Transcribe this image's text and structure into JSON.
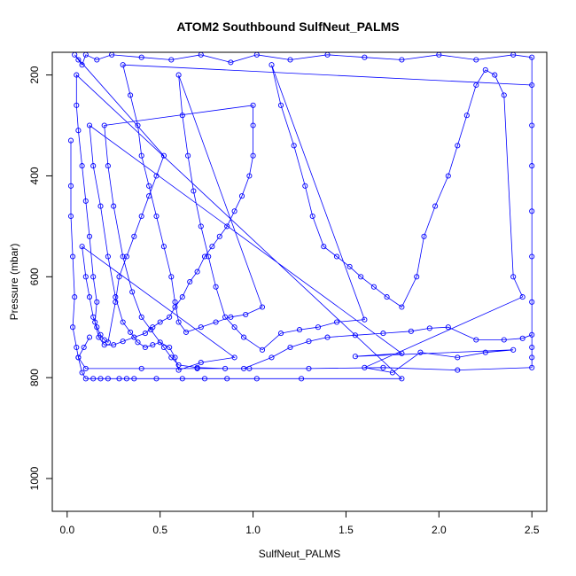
{
  "chart_data": {
    "type": "scatter",
    "title": "ATOM2 Southbound SulfNeut_PALMS",
    "xlabel": "SulfNeut_PALMS",
    "ylabel": "Pressure (mbar)",
    "xlim": [
      -0.08,
      2.58
    ],
    "ylim": [
      1065,
      155
    ],
    "y_reversed": true,
    "x_ticks": [
      0.0,
      0.5,
      1.0,
      1.5,
      2.0,
      2.5
    ],
    "x_tick_labels": [
      "0.0",
      "0.5",
      "1.0",
      "1.5",
      "2.0",
      "2.5"
    ],
    "y_ticks": [
      200,
      400,
      600,
      800,
      1000
    ],
    "y_tick_labels": [
      "200",
      "400",
      "600",
      "800",
      "1000"
    ],
    "marker": "open-circle",
    "connected": true,
    "color": "#0000ff",
    "grid": false,
    "legend": "none",
    "series": [
      {
        "points": [
          [
            0.02,
            330
          ],
          [
            0.02,
            420
          ],
          [
            0.02,
            480
          ],
          [
            0.03,
            560
          ],
          [
            0.04,
            640
          ],
          [
            0.03,
            700
          ],
          [
            0.05,
            740
          ],
          [
            0.06,
            760
          ],
          [
            0.08,
            790
          ],
          [
            0.1,
            802
          ],
          [
            0.14,
            802
          ],
          [
            0.18,
            802
          ],
          [
            0.22,
            802
          ],
          [
            0.28,
            802
          ],
          [
            0.32,
            802
          ],
          [
            0.36,
            802
          ],
          [
            0.48,
            802
          ],
          [
            0.62,
            802
          ],
          [
            0.74,
            802
          ],
          [
            0.86,
            802
          ],
          [
            1.02,
            802
          ],
          [
            1.26,
            802
          ],
          [
            1.8,
            802
          ],
          [
            0.05,
            200
          ],
          [
            0.05,
            260
          ],
          [
            0.06,
            310
          ],
          [
            0.08,
            380
          ],
          [
            0.1,
            450
          ],
          [
            0.12,
            520
          ],
          [
            0.14,
            600
          ],
          [
            0.16,
            650
          ],
          [
            0.15,
            690
          ],
          [
            0.17,
            720
          ],
          [
            0.2,
            735
          ],
          [
            0.25,
            735
          ],
          [
            0.3,
            728
          ],
          [
            0.36,
            720
          ],
          [
            0.42,
            712
          ],
          [
            0.46,
            700
          ],
          [
            0.5,
            690
          ],
          [
            0.55,
            680
          ],
          [
            0.58,
            660
          ],
          [
            0.62,
            640
          ],
          [
            0.66,
            610
          ],
          [
            0.7,
            590
          ],
          [
            0.74,
            560
          ],
          [
            0.78,
            540
          ],
          [
            0.82,
            520
          ],
          [
            0.86,
            500
          ],
          [
            0.9,
            470
          ],
          [
            0.94,
            440
          ],
          [
            0.98,
            400
          ],
          [
            1.0,
            360
          ],
          [
            1.0,
            300
          ],
          [
            1.0,
            260
          ],
          [
            0.2,
            300
          ],
          [
            0.22,
            380
          ],
          [
            0.25,
            460
          ],
          [
            0.3,
            560
          ],
          [
            0.35,
            630
          ],
          [
            0.4,
            680
          ],
          [
            0.45,
            705
          ],
          [
            0.52,
            740
          ],
          [
            0.56,
            760
          ],
          [
            0.6,
            775
          ],
          [
            0.7,
            780
          ],
          [
            0.85,
            782
          ],
          [
            0.95,
            782
          ],
          [
            1.1,
            760
          ],
          [
            1.2,
            740
          ],
          [
            1.3,
            728
          ],
          [
            1.4,
            720
          ],
          [
            1.55,
            716
          ],
          [
            1.7,
            712
          ],
          [
            1.85,
            708
          ],
          [
            1.95,
            702
          ],
          [
            2.05,
            700
          ],
          [
            2.2,
            725
          ],
          [
            2.35,
            725
          ],
          [
            2.45,
            722
          ],
          [
            2.5,
            715
          ],
          [
            2.5,
            650
          ],
          [
            2.5,
            560
          ],
          [
            2.5,
            470
          ],
          [
            2.5,
            380
          ],
          [
            2.5,
            300
          ],
          [
            2.5,
            220
          ],
          [
            0.3,
            180
          ],
          [
            0.34,
            240
          ],
          [
            0.38,
            300
          ],
          [
            0.4,
            360
          ],
          [
            0.44,
            420
          ],
          [
            0.48,
            480
          ],
          [
            0.52,
            540
          ],
          [
            0.56,
            600
          ],
          [
            0.58,
            650
          ],
          [
            0.6,
            690
          ],
          [
            0.64,
            710
          ],
          [
            0.72,
            700
          ],
          [
            0.8,
            690
          ],
          [
            0.88,
            680
          ],
          [
            0.96,
            675
          ],
          [
            1.05,
            660
          ],
          [
            0.6,
            200
          ],
          [
            0.62,
            280
          ],
          [
            0.65,
            360
          ],
          [
            0.68,
            430
          ],
          [
            0.72,
            500
          ],
          [
            0.76,
            560
          ],
          [
            0.8,
            620
          ],
          [
            0.85,
            680
          ],
          [
            0.9,
            700
          ],
          [
            0.95,
            720
          ],
          [
            1.05,
            745
          ],
          [
            1.15,
            712
          ],
          [
            1.25,
            705
          ],
          [
            1.35,
            700
          ],
          [
            1.45,
            690
          ],
          [
            1.6,
            685
          ],
          [
            1.1,
            180
          ],
          [
            1.15,
            260
          ],
          [
            1.22,
            340
          ],
          [
            1.28,
            420
          ],
          [
            1.32,
            480
          ],
          [
            1.38,
            540
          ],
          [
            1.45,
            560
          ],
          [
            1.52,
            580
          ],
          [
            1.58,
            600
          ],
          [
            1.65,
            620
          ],
          [
            1.72,
            640
          ],
          [
            1.8,
            660
          ],
          [
            1.88,
            600
          ],
          [
            1.92,
            520
          ],
          [
            1.98,
            460
          ],
          [
            2.05,
            400
          ],
          [
            2.1,
            340
          ],
          [
            2.15,
            280
          ],
          [
            2.2,
            220
          ],
          [
            2.25,
            190
          ],
          [
            2.3,
            200
          ],
          [
            2.35,
            240
          ],
          [
            2.4,
            600
          ],
          [
            2.45,
            640
          ],
          [
            1.6,
            780
          ],
          [
            1.75,
            790
          ],
          [
            1.9,
            750
          ],
          [
            2.1,
            760
          ],
          [
            2.25,
            750
          ],
          [
            2.4,
            745
          ],
          [
            1.55,
            758
          ],
          [
            1.8,
            752
          ],
          [
            0.12,
            300
          ],
          [
            0.14,
            380
          ],
          [
            0.18,
            460
          ],
          [
            0.22,
            560
          ],
          [
            0.26,
            640
          ],
          [
            0.3,
            690
          ],
          [
            0.34,
            710
          ],
          [
            0.38,
            730
          ],
          [
            0.42,
            740
          ],
          [
            0.46,
            735
          ],
          [
            0.5,
            730
          ],
          [
            0.55,
            740
          ],
          [
            0.58,
            760
          ],
          [
            0.6,
            785
          ],
          [
            0.72,
            770
          ],
          [
            0.9,
            760
          ],
          [
            0.08,
            540
          ],
          [
            0.1,
            600
          ],
          [
            0.12,
            640
          ],
          [
            0.14,
            680
          ],
          [
            0.16,
            700
          ],
          [
            0.18,
            715
          ],
          [
            0.2,
            725
          ],
          [
            0.22,
            730
          ],
          [
            0.26,
            650
          ],
          [
            0.28,
            600
          ],
          [
            0.32,
            560
          ],
          [
            0.36,
            520
          ],
          [
            0.4,
            480
          ],
          [
            0.44,
            440
          ],
          [
            0.48,
            400
          ],
          [
            0.52,
            360
          ],
          [
            0.04,
            160
          ],
          [
            0.06,
            170
          ],
          [
            0.08,
            180
          ],
          [
            0.1,
            160
          ],
          [
            0.16,
            170
          ],
          [
            0.24,
            160
          ],
          [
            0.4,
            165
          ],
          [
            0.56,
            170
          ],
          [
            0.72,
            160
          ],
          [
            0.88,
            175
          ],
          [
            1.02,
            160
          ],
          [
            1.2,
            170
          ],
          [
            1.4,
            160
          ],
          [
            1.6,
            165
          ],
          [
            1.8,
            170
          ],
          [
            2.0,
            160
          ],
          [
            2.2,
            170
          ],
          [
            2.4,
            160
          ],
          [
            2.5,
            165
          ],
          [
            2.5,
            740
          ],
          [
            2.5,
            760
          ],
          [
            2.5,
            780
          ],
          [
            2.1,
            785
          ],
          [
            1.7,
            780
          ],
          [
            1.3,
            782
          ],
          [
            0.98,
            782
          ],
          [
            0.7,
            782
          ],
          [
            0.4,
            782
          ],
          [
            0.1,
            782
          ],
          [
            0.06,
            760
          ],
          [
            0.09,
            740
          ],
          [
            0.12,
            720
          ]
        ]
      }
    ]
  }
}
